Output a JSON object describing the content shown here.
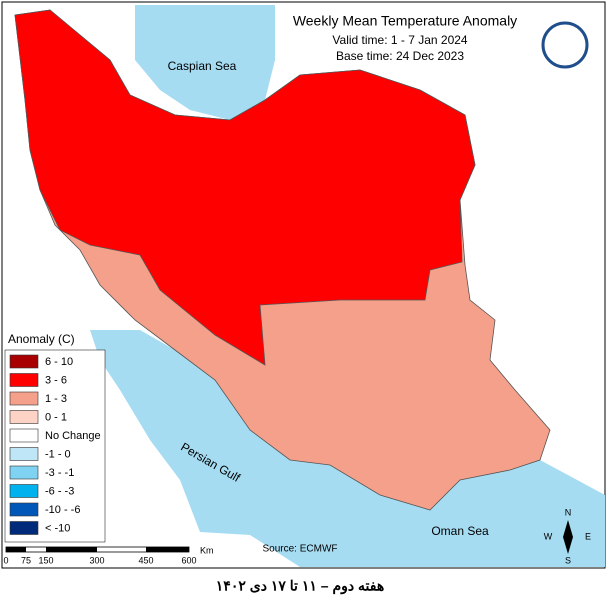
{
  "header": {
    "title": "Weekly Mean Temperature Anomaly",
    "valid_time": "Valid time: 1 - 7 Jan 2024",
    "base_time": "Base time: 24 Dec 2023"
  },
  "map": {
    "labels": {
      "caspian": "Caspian Sea",
      "gulf": "Persian Gulf",
      "oman": "Oman Sea"
    },
    "source": "Source: ECMWF"
  },
  "legend": {
    "title": "Anomaly (C)",
    "items": [
      {
        "label": "6 - 10",
        "color": "#a80000"
      },
      {
        "label": "3 - 6",
        "color": "#ff0000"
      },
      {
        "label": "1 - 3",
        "color": "#f4a08a"
      },
      {
        "label": "0 - 1",
        "color": "#fcd3c4"
      },
      {
        "label": "No Change",
        "color": "#ffffff"
      },
      {
        "label": "-1 - 0",
        "color": "#bfe6f7"
      },
      {
        "label": "-3 - -1",
        "color": "#7fd2f2"
      },
      {
        "label": "-6 - -3",
        "color": "#00b3ef"
      },
      {
        "label": "-10 - -6",
        "color": "#0057b8"
      },
      {
        "label": "< -10",
        "color": "#002a7a"
      }
    ]
  },
  "scale": {
    "unit": "Km",
    "ticks": [
      "0",
      "75",
      "150",
      "300",
      "450",
      "600"
    ]
  },
  "compass": {
    "n": "N",
    "s": "S",
    "e": "E",
    "w": "W"
  },
  "footer": {
    "caption": "هفته دوم – ۱۱ تا ۱۷ دی ۱۴۰۲"
  }
}
